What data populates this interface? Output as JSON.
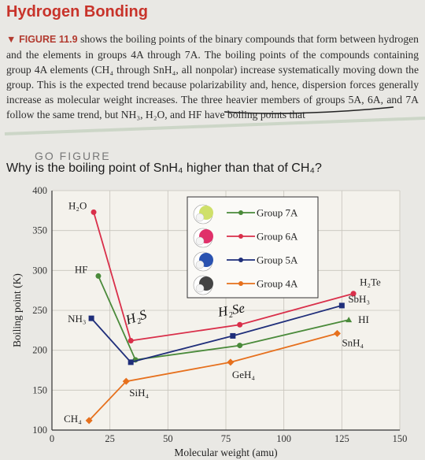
{
  "header": {
    "title": "Hydrogen Bonding"
  },
  "caption": {
    "lead": "▼ FIGURE 11.9",
    "text": " shows the boiling points of the binary compounds that form between hydrogen and the elements in groups 4A through 7A. The boiling points of the compounds containing group 4A elements (CH₄ through SnH₄, all nonpolar) increase systematically moving down the group. This is the expected trend because polarizability and, hence, dispersion forces generally increase as molecular weight increases. The three heavier members of groups 5A, 6A, and 7A follow the same trend, but NH₃, H₂O, and HF have boiling points that"
  },
  "go_figure": {
    "label": "GO FIGURE",
    "question": "Why is the boiling point of SnH₄ higher than that of CH₄?"
  },
  "annotations": {
    "h2s": "H₂S",
    "h2se": "H₂Se"
  },
  "chart_data": {
    "type": "line",
    "xlabel": "Molecular weight (amu)",
    "ylabel": "Boiling point (K)",
    "xlim": [
      0,
      150
    ],
    "ylim": [
      100,
      400
    ],
    "xticks": [
      0,
      25,
      50,
      75,
      100,
      125,
      150
    ],
    "yticks": [
      100,
      150,
      200,
      250,
      300,
      350,
      400
    ],
    "grid": true,
    "legend_position": "top-center",
    "series": [
      {
        "name": "Group 7A",
        "color": "#4a8a3a",
        "points": [
          {
            "x": 20,
            "y": 293,
            "label": "HF"
          },
          {
            "x": 36,
            "y": 188,
            "label": ""
          },
          {
            "x": 81,
            "y": 206,
            "label": ""
          },
          {
            "x": 128,
            "y": 238,
            "label": "HI"
          }
        ]
      },
      {
        "name": "Group 6A",
        "color": "#d92f4a",
        "points": [
          {
            "x": 18,
            "y": 373,
            "label": "H₂O"
          },
          {
            "x": 34,
            "y": 212,
            "label": ""
          },
          {
            "x": 81,
            "y": 232,
            "label": ""
          },
          {
            "x": 130,
            "y": 271,
            "label": "H₂Te"
          }
        ]
      },
      {
        "name": "Group 5A",
        "color": "#1f2e7a",
        "points": [
          {
            "x": 17,
            "y": 240,
            "label": "NH₃"
          },
          {
            "x": 34,
            "y": 185,
            "label": ""
          },
          {
            "x": 78,
            "y": 218,
            "label": ""
          },
          {
            "x": 125,
            "y": 256,
            "label": "SbH₃"
          }
        ]
      },
      {
        "name": "Group 4A",
        "color": "#e6701d",
        "points": [
          {
            "x": 16,
            "y": 112,
            "label": "CH₄"
          },
          {
            "x": 32,
            "y": 161,
            "label": "SiH₄"
          },
          {
            "x": 77,
            "y": 185,
            "label": "GeH₄"
          },
          {
            "x": 123,
            "y": 221,
            "label": "SnH₄"
          }
        ]
      }
    ]
  }
}
